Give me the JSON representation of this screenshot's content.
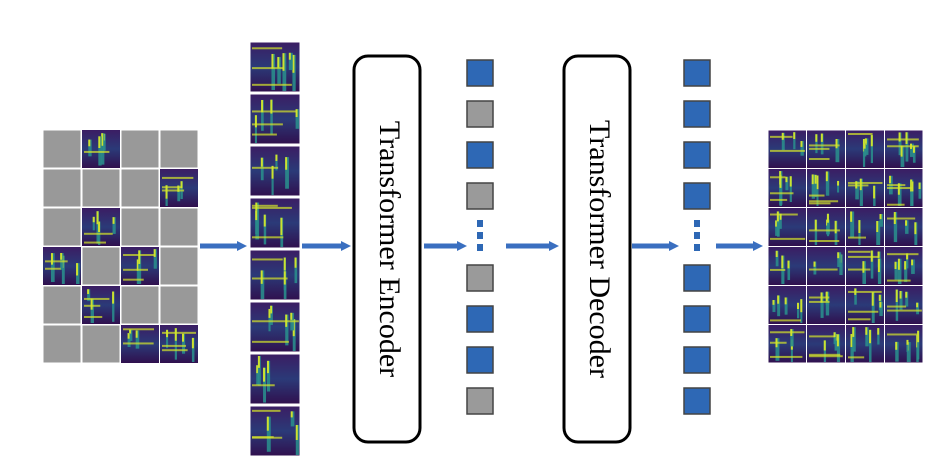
{
  "encoder": {
    "label": "Transformer Encoder"
  },
  "decoder": {
    "label": "Transformer Decoder"
  },
  "colors": {
    "masked_patch": "#999999",
    "token_blue": "#2e68b5",
    "token_gray": "#9a9a9a",
    "arrow": "#3a6fc0",
    "spectrogram_bg": "#30104e",
    "spectrogram_mid": "#2a8c8c",
    "spectrogram_hot": "#d6e62a"
  },
  "masked_grid": {
    "rows": 6,
    "cols": 4,
    "cells": [
      "masked",
      "visible",
      "masked",
      "masked",
      "masked",
      "masked",
      "masked",
      "visible",
      "masked",
      "visible",
      "masked",
      "masked",
      "visible",
      "masked",
      "visible",
      "masked",
      "masked",
      "visible",
      "masked",
      "masked",
      "masked",
      "masked",
      "visible",
      "visible"
    ]
  },
  "visible_patch_count": 8,
  "encoder_tokens": [
    "blue",
    "gray",
    "blue",
    "gray",
    "dots",
    "gray",
    "blue",
    "blue",
    "gray"
  ],
  "decoder_tokens": [
    "blue",
    "blue",
    "blue",
    "blue",
    "dots",
    "blue",
    "blue",
    "blue",
    "blue"
  ],
  "output_grid": {
    "rows": 6,
    "cols": 4
  }
}
